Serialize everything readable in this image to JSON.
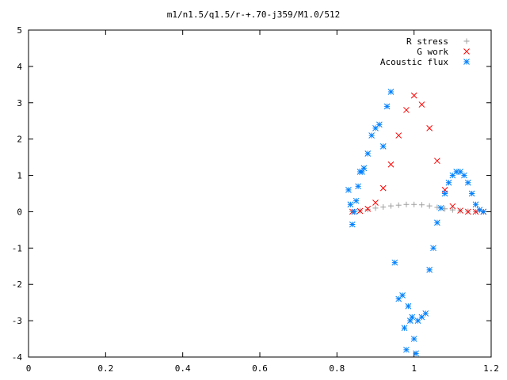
{
  "chart_data": {
    "type": "scatter",
    "title": "m1/n1.5/q1.5/r-+.70-j359/M1.0/512",
    "xlabel": "",
    "ylabel": "",
    "xlim": [
      0,
      1.2
    ],
    "ylim": [
      -4,
      5
    ],
    "x_ticks": [
      "0",
      "0.2",
      "0.4",
      "0.6",
      "0.8",
      "1",
      "1.2"
    ],
    "y_ticks": [
      "-4",
      "-3",
      "-2",
      "-1",
      "0",
      "1",
      "2",
      "3",
      "4",
      "5"
    ],
    "grid": false,
    "legend_position": "top-right",
    "series": [
      {
        "name": "R stress",
        "marker": "plus",
        "color": "#a0a0a0",
        "x": [
          0.84,
          0.86,
          0.88,
          0.9,
          0.92,
          0.94,
          0.96,
          0.98,
          1.0,
          1.02,
          1.04,
          1.06,
          1.08,
          1.1,
          1.12,
          1.14,
          1.16,
          1.18
        ],
        "y": [
          0.0,
          0.03,
          0.06,
          0.1,
          0.13,
          0.16,
          0.18,
          0.2,
          0.2,
          0.19,
          0.16,
          0.12,
          0.08,
          0.05,
          0.03,
          0.01,
          0.0,
          0.0
        ]
      },
      {
        "name": "G work",
        "marker": "cross",
        "color": "#ff0000",
        "x": [
          0.84,
          0.86,
          0.88,
          0.9,
          0.92,
          0.94,
          0.96,
          0.98,
          1.0,
          1.02,
          1.04,
          1.06,
          1.08,
          1.1,
          1.12,
          1.14,
          1.16,
          1.18
        ],
        "y": [
          0.0,
          0.02,
          0.08,
          0.25,
          0.65,
          1.3,
          2.1,
          2.8,
          3.2,
          2.95,
          2.3,
          1.4,
          0.6,
          0.15,
          0.03,
          0.0,
          0.0,
          0.0
        ]
      },
      {
        "name": "Acoustic flux",
        "marker": "star",
        "color": "#0080ff",
        "x": [
          0.83,
          0.835,
          0.84,
          0.845,
          0.85,
          0.855,
          0.86,
          0.865,
          0.87,
          0.88,
          0.89,
          0.9,
          0.91,
          0.92,
          0.93,
          0.94,
          0.95,
          0.96,
          0.97,
          0.975,
          0.98,
          0.985,
          0.99,
          0.995,
          1.0,
          1.005,
          1.01,
          1.02,
          1.03,
          1.04,
          1.05,
          1.06,
          1.07,
          1.08,
          1.09,
          1.1,
          1.11,
          1.12,
          1.13,
          1.14,
          1.15,
          1.16,
          1.17,
          1.18
        ],
        "y": [
          0.6,
          0.2,
          -0.35,
          0.0,
          0.3,
          0.7,
          1.1,
          1.1,
          1.2,
          1.6,
          2.1,
          2.3,
          2.4,
          1.8,
          2.9,
          3.3,
          -1.4,
          -2.4,
          -2.3,
          -3.2,
          -3.8,
          -2.6,
          -3.0,
          -2.9,
          -3.5,
          -3.9,
          -3.0,
          -2.9,
          -2.8,
          -1.6,
          -1.0,
          -0.3,
          0.1,
          0.5,
          0.8,
          1.0,
          1.1,
          1.1,
          1.0,
          0.8,
          0.5,
          0.2,
          0.05,
          0.0
        ]
      }
    ]
  }
}
